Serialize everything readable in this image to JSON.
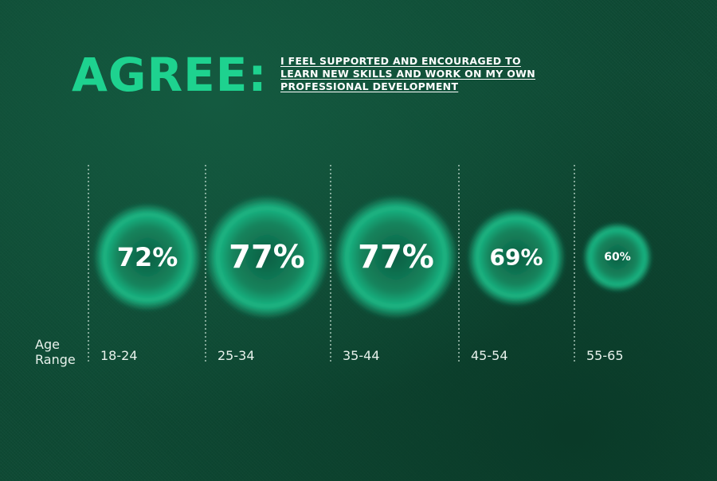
{
  "header": {
    "title": "AGREE:",
    "subtitle_lines": [
      "I FEEL SUPPORTED AND ENCOURAGED TO",
      "LEARN NEW SKILLS AND WORK ON MY OWN",
      "PROFESSIONAL DEVELOPMENT"
    ]
  },
  "axis": {
    "label_line1": "Age",
    "label_line2": "Range"
  },
  "colors": {
    "background": "#0e4a34",
    "accent": "#1ed28f",
    "bubble": "#1bb784",
    "text": "#ffffff"
  },
  "chart_data": {
    "type": "bubble",
    "title": "AGREE:",
    "subtitle": "I FEEL SUPPORTED AND ENCOURAGED TO LEARN NEW SKILLS AND WORK ON MY OWN PROFESSIONAL DEVELOPMENT",
    "xlabel": "Age Range",
    "categories": [
      "18-24",
      "25-34",
      "35-44",
      "45-54",
      "55-65"
    ],
    "values": [
      72,
      77,
      77,
      69,
      60
    ],
    "value_labels": [
      "72%",
      "77%",
      "77%",
      "69%",
      "60%"
    ],
    "unit": "%",
    "grid": "dotted vertical separators"
  }
}
